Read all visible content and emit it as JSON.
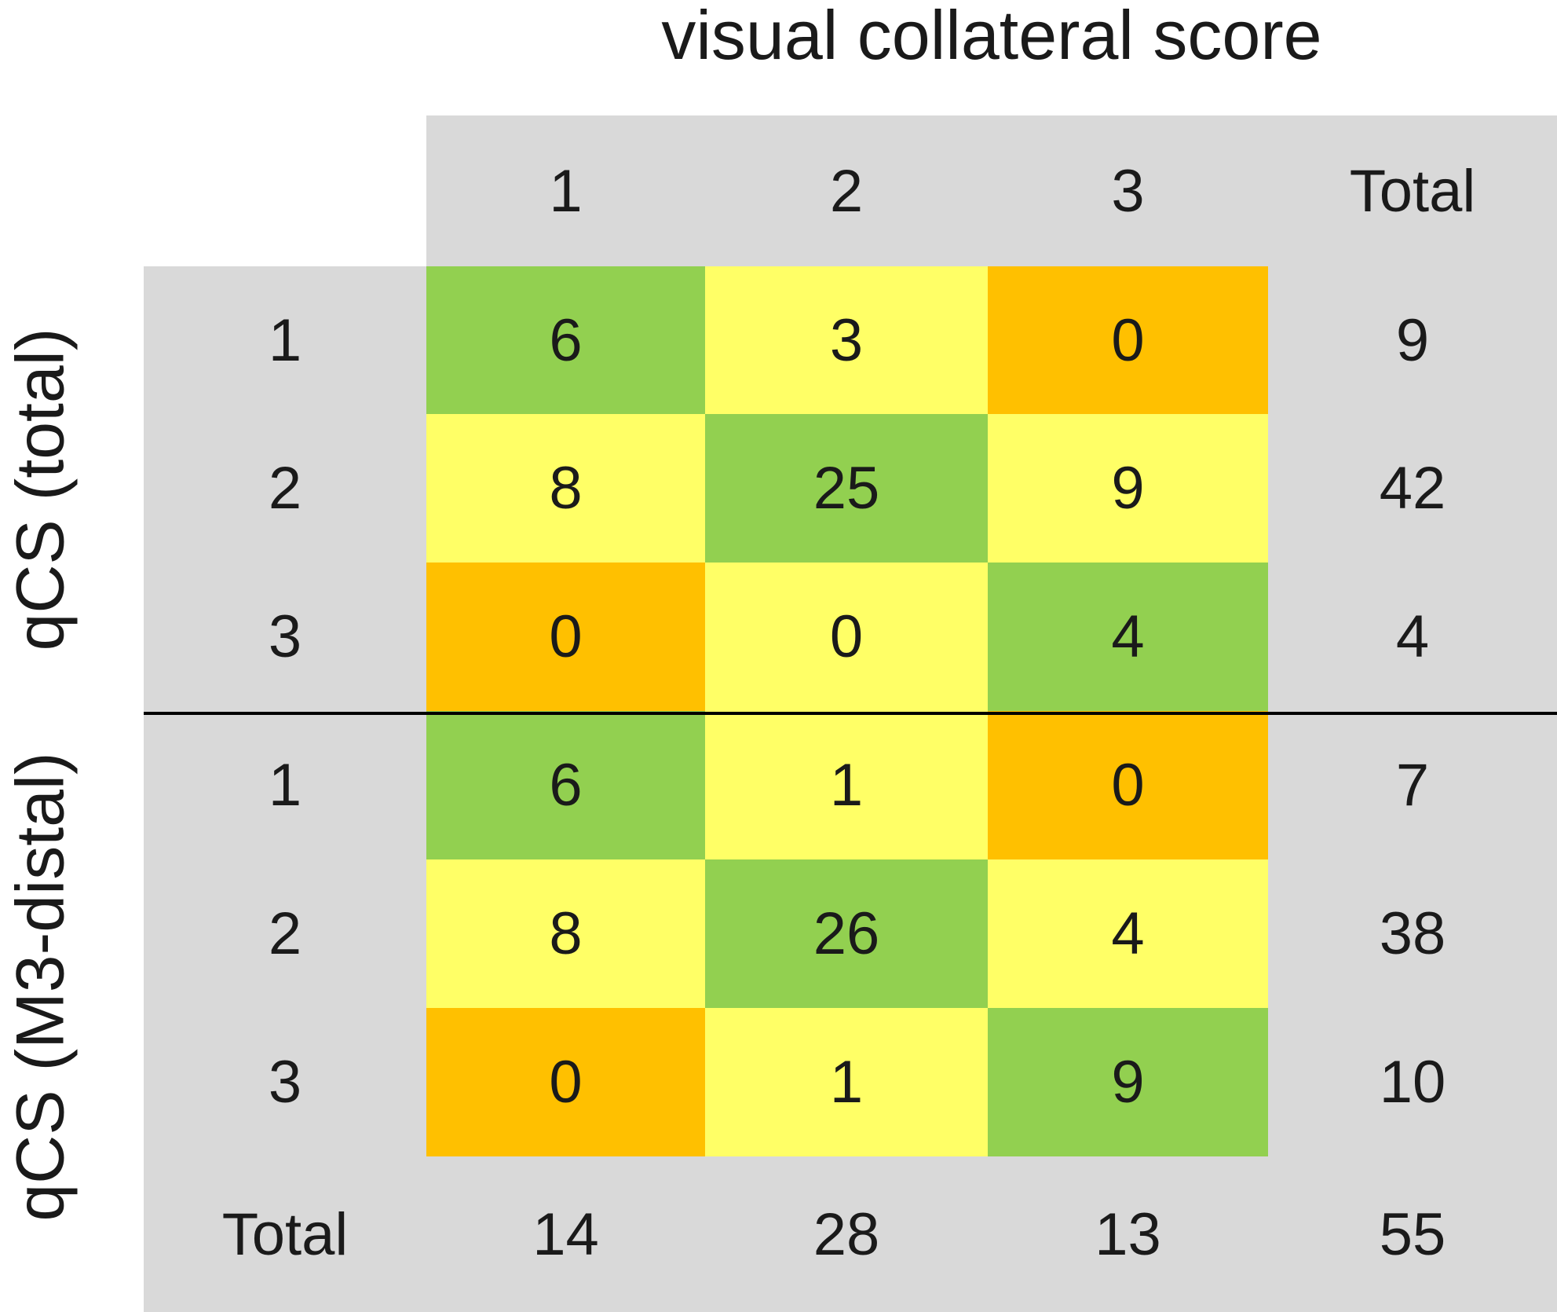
{
  "chart_data": {
    "type": "table",
    "title": "visual collateral score",
    "column_headers": [
      "1",
      "2",
      "3",
      "Total"
    ],
    "sections": [
      {
        "label": "qCS (total)",
        "rows": [
          {
            "row_label": "1",
            "values": [
              "6",
              "3",
              "0"
            ],
            "total": "9"
          },
          {
            "row_label": "2",
            "values": [
              "8",
              "25",
              "9"
            ],
            "total": "42"
          },
          {
            "row_label": "3",
            "values": [
              "0",
              "0",
              "4"
            ],
            "total": "4"
          }
        ]
      },
      {
        "label": "qCS (M3-distal)",
        "rows": [
          {
            "row_label": "1",
            "values": [
              "6",
              "1",
              "0"
            ],
            "total": "7"
          },
          {
            "row_label": "2",
            "values": [
              "8",
              "26",
              "4"
            ],
            "total": "38"
          },
          {
            "row_label": "3",
            "values": [
              "0",
              "1",
              "9"
            ],
            "total": "10"
          }
        ]
      }
    ],
    "footer": {
      "label": "Total",
      "values": [
        "14",
        "28",
        "13"
      ],
      "total": "55"
    },
    "colors": {
      "agreement": "#92d050",
      "off_by_one": "#ffff66",
      "off_by_two": "#ffc000",
      "header_background": "#d9d9d9",
      "divider": "#000000"
    }
  }
}
